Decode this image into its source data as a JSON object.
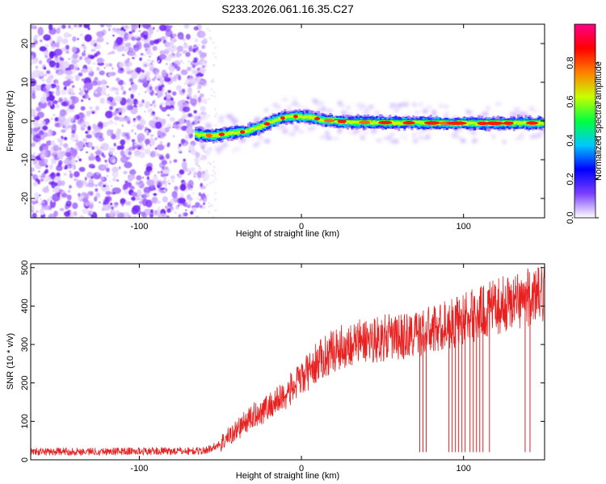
{
  "title": "S233.2026.061.16.35.C27",
  "chart_data": [
    {
      "type": "heatmap",
      "name": "spectrogram",
      "xlabel": "Height of straight line (km)",
      "ylabel": "Frequency (Hz)",
      "xlim": [
        -167,
        150
      ],
      "ylim": [
        -25,
        25
      ],
      "xticks": [
        -100,
        0,
        100
      ],
      "yticks": [
        -20,
        -10,
        0,
        10,
        20
      ],
      "noise_end_x": -65,
      "colorbar": {
        "label": "Normalized spectral amplitude",
        "range": [
          0,
          1
        ],
        "ticks": [
          0.0,
          0.2,
          0.4,
          0.6,
          0.8
        ],
        "colors": [
          "#ffffff",
          "#7a3fff",
          "#0000ff",
          "#00c8ff",
          "#00ff40",
          "#c8ff00",
          "#ff8000",
          "#ff0000",
          "#ff0088"
        ]
      },
      "ridge": {
        "x": [
          -65,
          -55,
          -45,
          -35,
          -25,
          -15,
          -5,
          5,
          15,
          30,
          50,
          80,
          110,
          150
        ],
        "freq": [
          -3.5,
          -3.8,
          -3.2,
          -2.8,
          -1.5,
          0.5,
          1.2,
          1.0,
          0.2,
          -0.3,
          -0.4,
          -0.5,
          -0.6,
          -0.5
        ]
      }
    },
    {
      "type": "line",
      "name": "snr",
      "xlabel": "Height of straight line (km)",
      "ylabel": "SNR (10 * v/v)",
      "xlim": [
        -167,
        150
      ],
      "ylim": [
        0,
        510
      ],
      "xticks": [
        -100,
        0,
        100
      ],
      "yticks": [
        0,
        100,
        200,
        300,
        400,
        500
      ],
      "color": "#e82020",
      "envelope": {
        "x": [
          -167,
          -60,
          -50,
          -40,
          -30,
          -20,
          -10,
          0,
          10,
          20,
          30,
          40,
          50,
          60,
          70,
          80,
          90,
          100,
          110,
          120,
          130,
          140,
          150
        ],
        "snr": [
          20,
          22,
          40,
          75,
          110,
          135,
          165,
          205,
          250,
          280,
          295,
          305,
          310,
          312,
          320,
          330,
          345,
          360,
          375,
          390,
          405,
          415,
          420
        ]
      },
      "dropouts_x": [
        73,
        75,
        77,
        91,
        93,
        95,
        97,
        99,
        101,
        104,
        106,
        108,
        110,
        112,
        116,
        138,
        141
      ]
    }
  ]
}
